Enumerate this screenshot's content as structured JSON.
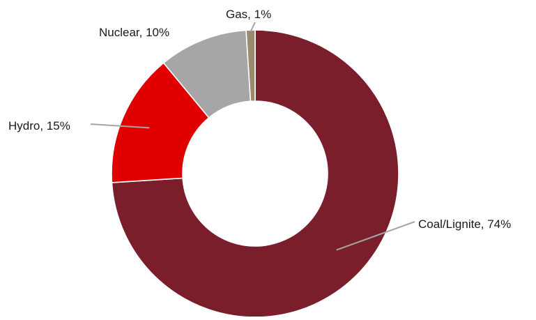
{
  "chart_data": {
    "type": "pie",
    "variant": "donut",
    "title": "",
    "legend": "none",
    "slice_order": "clockwise-from-top",
    "slices": [
      {
        "name": "Coal/Lignite",
        "value": 74,
        "label": "Coal/Lignite, 74%",
        "color": "#7a1e2b"
      },
      {
        "name": "Hydro",
        "value": 15,
        "label": "Hydro, 15%",
        "color": "#e00000"
      },
      {
        "name": "Nuclear",
        "value": 10,
        "label": "Nuclear, 10%",
        "color": "#a6a6a6"
      },
      {
        "name": "Gas",
        "value": 1,
        "label": "Gas, 1%",
        "color": "#9a8a70"
      }
    ]
  }
}
